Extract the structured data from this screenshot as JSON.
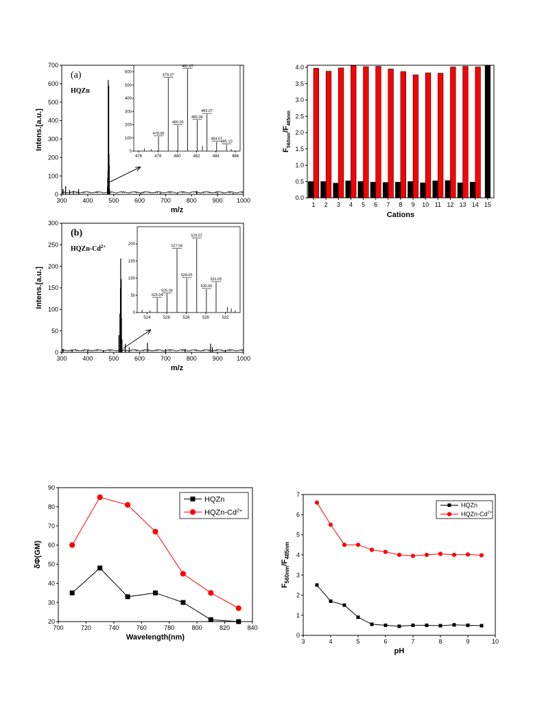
{
  "chart_data": [
    {
      "id": "ms-a",
      "type": "line",
      "panel_label": "(a)",
      "compound_label": "HQZn",
      "xlabel": "m/z",
      "ylabel": "Intens.[a.u.]",
      "xlim": [
        300,
        1000
      ],
      "ylim": [
        0,
        700
      ],
      "xticks": [
        300,
        400,
        500,
        600,
        700,
        800,
        900,
        1000
      ],
      "yticks": [
        0,
        100,
        200,
        300,
        400,
        500,
        600,
        700
      ],
      "peaks": [
        {
          "x": 305,
          "y": 30
        },
        {
          "x": 315,
          "y": 45
        },
        {
          "x": 330,
          "y": 25
        },
        {
          "x": 345,
          "y": 20
        },
        {
          "x": 365,
          "y": 28
        },
        {
          "x": 476,
          "y": 40
        },
        {
          "x": 477,
          "y": 90
        },
        {
          "x": 478,
          "y": 130
        },
        {
          "x": 479,
          "y": 620
        },
        {
          "x": 480,
          "y": 300
        },
        {
          "x": 481,
          "y": 590
        },
        {
          "x": 482,
          "y": 220
        },
        {
          "x": 483,
          "y": 160
        },
        {
          "x": 484,
          "y": 30
        },
        {
          "x": 605,
          "y": 8
        },
        {
          "x": 680,
          "y": 10
        },
        {
          "x": 745,
          "y": 6
        },
        {
          "x": 820,
          "y": 18
        },
        {
          "x": 900,
          "y": 6
        },
        {
          "x": 960,
          "y": 8
        }
      ],
      "inset": {
        "xlim": [
          475.5,
          486.5
        ],
        "ylim": [
          0,
          650
        ],
        "xticks": [
          476,
          478,
          480,
          482,
          484,
          486
        ],
        "yticks": [
          0,
          100,
          200,
          300,
          400,
          500,
          600
        ],
        "peaks": [
          {
            "x": 476.6,
            "y": 20
          },
          {
            "x": 477.3,
            "y": 15
          },
          {
            "x": 478.06,
            "y": 110,
            "label": "478.06"
          },
          {
            "x": 479.07,
            "y": 555,
            "label": "479.07"
          },
          {
            "x": 480.06,
            "y": 195,
            "label": "480.06"
          },
          {
            "x": 481.07,
            "y": 620,
            "label": "481.07"
          },
          {
            "x": 482.06,
            "y": 235,
            "label": "482.06"
          },
          {
            "x": 482.6,
            "y": 40
          },
          {
            "x": 483.07,
            "y": 280,
            "label": "483.07"
          },
          {
            "x": 484.07,
            "y": 70,
            "label": "484.07"
          },
          {
            "x": 485.1,
            "y": 50,
            "label": "485.10"
          },
          {
            "x": 485.6,
            "y": 15
          }
        ]
      }
    },
    {
      "id": "ratio-bars",
      "type": "bar",
      "xlabel": "Cations",
      "ylabel_main": "F",
      "ylabel_sub1": "560nm",
      "ylabel_mid": "/F",
      "ylabel_sub2": "485nm",
      "ylim": [
        0,
        4.0
      ],
      "yticks": [
        "0.0",
        "0.5",
        "1.0",
        "1.5",
        "2.0",
        "2.5",
        "3.0",
        "3.5",
        "4.0"
      ],
      "categories": [
        "1",
        "2",
        "3",
        "4",
        "5",
        "6",
        "7",
        "8",
        "9",
        "10",
        "11",
        "12",
        "13",
        "14",
        "15"
      ],
      "series": [
        {
          "color": "#000000",
          "values": [
            0.5,
            0.5,
            0.45,
            0.52,
            0.5,
            0.48,
            0.47,
            0.48,
            0.5,
            0.46,
            0.52,
            0.53,
            0.46,
            0.48,
            4.05
          ]
        },
        {
          "color": "#ff0000",
          "values": [
            3.97,
            3.88,
            3.98,
            4.05,
            4.02,
            4.03,
            3.95,
            3.87,
            3.77,
            3.83,
            3.82,
            4.01,
            4.03,
            4.01,
            null
          ]
        }
      ]
    },
    {
      "id": "ms-b",
      "type": "line",
      "panel_label": "(b)",
      "compound_label": "HQZn-Cd",
      "compound_sup": "2+",
      "xlabel": "m/z",
      "ylabel": "Intens.[a.u.]",
      "xlim": [
        300,
        1000
      ],
      "ylim": [
        0,
        300
      ],
      "xticks": [
        300,
        400,
        500,
        600,
        700,
        800,
        900,
        1000
      ],
      "yticks": [
        0,
        50,
        100,
        150,
        200,
        250,
        300
      ],
      "peaks": [
        {
          "x": 305,
          "y": 8
        },
        {
          "x": 340,
          "y": 6
        },
        {
          "x": 400,
          "y": 5
        },
        {
          "x": 460,
          "y": 5
        },
        {
          "x": 520,
          "y": 40
        },
        {
          "x": 524,
          "y": 90
        },
        {
          "x": 526,
          "y": 150
        },
        {
          "x": 527,
          "y": 218
        },
        {
          "x": 528,
          "y": 120
        },
        {
          "x": 529,
          "y": 170
        },
        {
          "x": 530,
          "y": 80
        },
        {
          "x": 532,
          "y": 30
        },
        {
          "x": 545,
          "y": 20
        },
        {
          "x": 560,
          "y": 12
        },
        {
          "x": 630,
          "y": 22
        },
        {
          "x": 700,
          "y": 8
        },
        {
          "x": 775,
          "y": 8
        },
        {
          "x": 873,
          "y": 20
        },
        {
          "x": 880,
          "y": 12
        },
        {
          "x": 930,
          "y": 6
        }
      ],
      "inset": {
        "xlim": [
          523,
          533.5
        ],
        "ylim": [
          0,
          250
        ],
        "xticks": [
          524,
          526,
          528,
          530,
          532
        ],
        "yticks": [
          0,
          50,
          100,
          150,
          200
        ],
        "peaks": [
          {
            "x": 523.5,
            "y": 8
          },
          {
            "x": 524.3,
            "y": 6
          },
          {
            "x": 525.04,
            "y": 42,
            "label": "525.04"
          },
          {
            "x": 526.04,
            "y": 55,
            "label": "526.04"
          },
          {
            "x": 527.06,
            "y": 185,
            "label": "527.06"
          },
          {
            "x": 528.05,
            "y": 100,
            "label": "528.05"
          },
          {
            "x": 529.07,
            "y": 215,
            "label": "529.07"
          },
          {
            "x": 530.06,
            "y": 68,
            "label": "530.06"
          },
          {
            "x": 531.05,
            "y": 88,
            "label": "531.05"
          },
          {
            "x": 532.2,
            "y": 16
          },
          {
            "x": 532.6,
            "y": 12
          },
          {
            "x": 533.0,
            "y": 6
          }
        ]
      }
    },
    {
      "id": "two-photon",
      "type": "line",
      "xlabel": "Wavelength(nm)",
      "ylabel": "δΦ(GM)",
      "xlim": [
        700,
        840
      ],
      "ylim": [
        20,
        90
      ],
      "xticks": [
        700,
        720,
        740,
        760,
        780,
        800,
        820,
        840
      ],
      "yticks": [
        20,
        30,
        40,
        50,
        60,
        70,
        80,
        90
      ],
      "legend_position": "top-right",
      "series": [
        {
          "name": "HQZn",
          "color": "#000000",
          "marker": "square",
          "x": [
            710,
            730,
            750,
            770,
            790,
            810,
            830
          ],
          "y": [
            35,
            48,
            33,
            35,
            30,
            21,
            20
          ]
        },
        {
          "name": "HQZn-Cd",
          "name_sup": "2+",
          "color": "#ff0000",
          "marker": "circle",
          "x": [
            710,
            730,
            750,
            770,
            790,
            810,
            830
          ],
          "y": [
            60,
            85,
            81,
            67,
            45,
            35,
            27
          ]
        }
      ]
    },
    {
      "id": "ph",
      "type": "line",
      "xlabel": "pH",
      "ylabel_main": "F",
      "ylabel_sub1": "560nm",
      "ylabel_mid": "/F",
      "ylabel_sub2": "485nm",
      "xlim": [
        3,
        10
      ],
      "ylim": [
        0,
        7
      ],
      "xticks": [
        3,
        4,
        5,
        6,
        7,
        8,
        9,
        10
      ],
      "yticks": [
        0,
        1,
        2,
        3,
        4,
        5,
        6,
        7
      ],
      "legend_position": "top-right",
      "series": [
        {
          "name": "HQZn",
          "color": "#000000",
          "marker": "square",
          "x": [
            3.5,
            4.0,
            4.5,
            5.0,
            5.5,
            6.0,
            6.5,
            7.0,
            7.5,
            8.0,
            8.5,
            9.0,
            9.5
          ],
          "y": [
            2.5,
            1.7,
            1.5,
            0.9,
            0.55,
            0.5,
            0.45,
            0.5,
            0.5,
            0.48,
            0.52,
            0.5,
            0.48
          ]
        },
        {
          "name": "HQZn-Cd",
          "name_sup": "2+",
          "color": "#ff0000",
          "marker": "circle",
          "x": [
            3.5,
            4.0,
            4.5,
            5.0,
            5.5,
            6.0,
            6.5,
            7.0,
            7.5,
            8.0,
            8.5,
            9.0,
            9.5
          ],
          "y": [
            6.6,
            5.5,
            4.5,
            4.5,
            4.25,
            4.15,
            4.0,
            3.95,
            4.0,
            4.05,
            4.0,
            4.02,
            3.98
          ]
        }
      ]
    }
  ]
}
